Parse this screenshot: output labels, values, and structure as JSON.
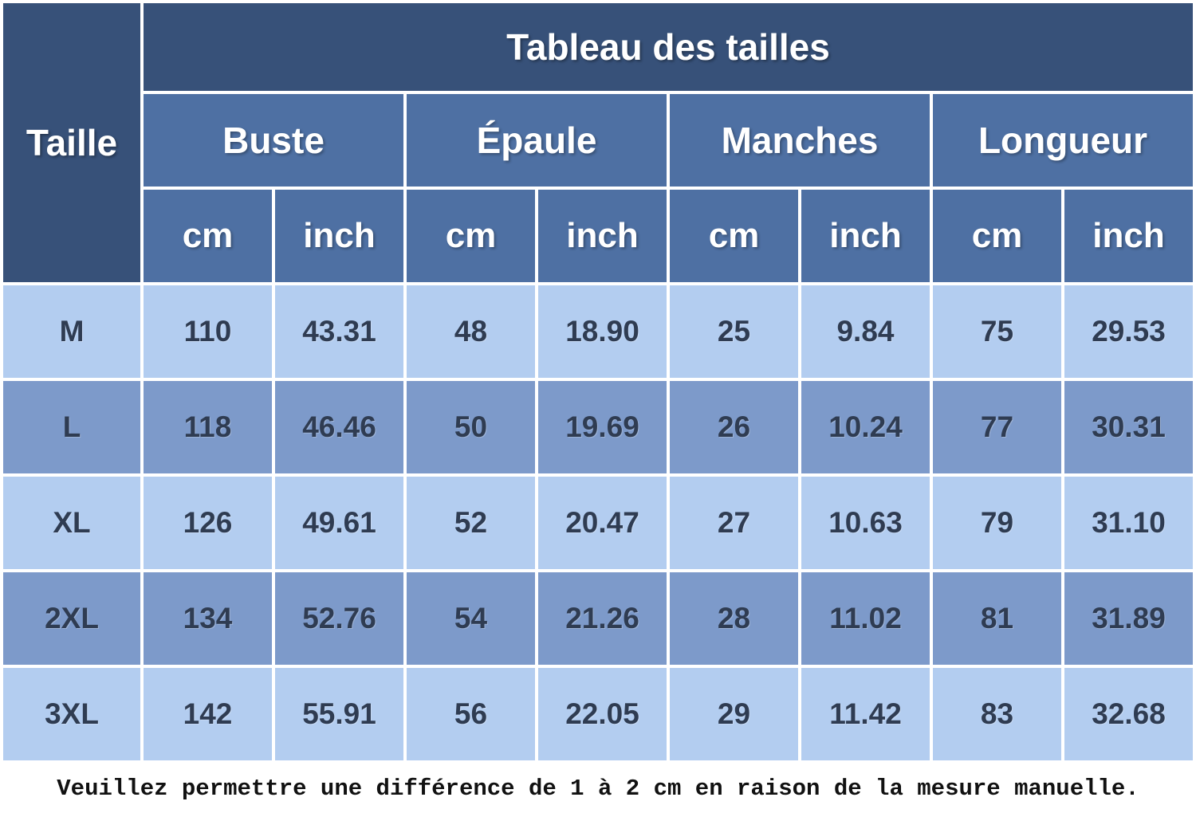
{
  "title": "Tableau des tailles",
  "corner_label": "Taille",
  "groups": [
    {
      "label": "Buste"
    },
    {
      "label": "Épaule"
    },
    {
      "label": "Manches"
    },
    {
      "label": "Longueur"
    }
  ],
  "unit_headers": [
    "cm",
    "inch",
    "cm",
    "inch",
    "cm",
    "inch",
    "cm",
    "inch"
  ],
  "rows": [
    {
      "size": "M",
      "values": [
        "110",
        "43.31",
        "48",
        "18.90",
        "25",
        "9.84",
        "75",
        "29.53"
      ]
    },
    {
      "size": "L",
      "values": [
        "118",
        "46.46",
        "50",
        "19.69",
        "26",
        "10.24",
        "77",
        "30.31"
      ]
    },
    {
      "size": "XL",
      "values": [
        "126",
        "49.61",
        "52",
        "20.47",
        "27",
        "10.63",
        "79",
        "31.10"
      ]
    },
    {
      "size": "2XL",
      "values": [
        "134",
        "52.76",
        "54",
        "21.26",
        "28",
        "11.02",
        "81",
        "31.89"
      ]
    },
    {
      "size": "3XL",
      "values": [
        "142",
        "55.91",
        "56",
        "22.05",
        "29",
        "11.42",
        "83",
        "32.68"
      ]
    }
  ],
  "footnote": "Veuillez permettre une différence de 1 à 2 cm en raison de la mesure manuelle.",
  "colors": {
    "header_dark": "#375179",
    "header_medium": "#4e70a3",
    "row_light": "#b3cdf0",
    "row_dark": "#7d9aca",
    "header_text": "#ffffff",
    "data_text": "#2f3c52",
    "cell_border": "#ffffff",
    "footnote_text": "#111111"
  },
  "chart_data": {
    "type": "table",
    "title": "Tableau des tailles",
    "columns": [
      "Taille",
      "Buste cm",
      "Buste inch",
      "Épaule cm",
      "Épaule inch",
      "Manches cm",
      "Manches inch",
      "Longueur cm",
      "Longueur inch"
    ],
    "rows": [
      [
        "M",
        110,
        43.31,
        48,
        18.9,
        25,
        9.84,
        75,
        29.53
      ],
      [
        "L",
        118,
        46.46,
        50,
        19.69,
        26,
        10.24,
        77,
        30.31
      ],
      [
        "XL",
        126,
        49.61,
        52,
        20.47,
        27,
        10.63,
        79,
        31.1
      ],
      [
        "2XL",
        134,
        52.76,
        54,
        21.26,
        28,
        11.02,
        81,
        31.89
      ],
      [
        "3XL",
        142,
        55.91,
        56,
        22.05,
        29,
        11.42,
        83,
        32.68
      ]
    ],
    "footnote": "Veuillez permettre une différence de 1 à 2 cm en raison de la mesure manuelle."
  }
}
